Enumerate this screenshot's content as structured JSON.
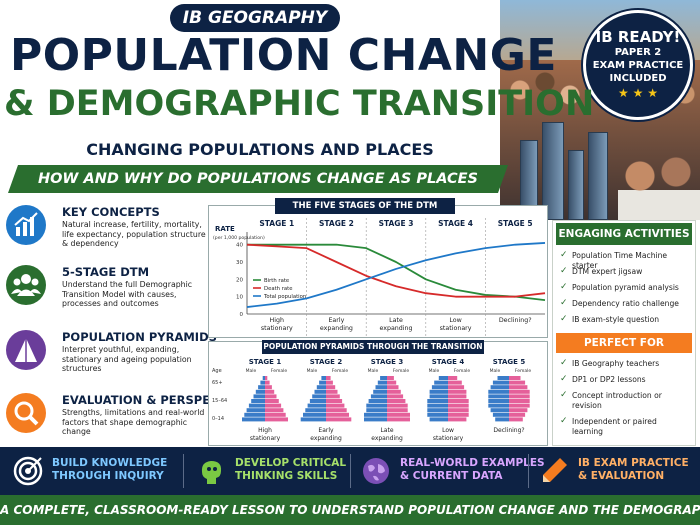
{
  "header": {
    "badge": "IB GEOGRAPHY",
    "title_line1": "POPULATION CHANGE",
    "title_line2": "& DEMOGRAPHIC TRANSITION",
    "subtitle": "CHANGING POPULATIONS AND PLACES",
    "question": "HOW AND WHY DO POPULATIONS CHANGE AS PLACES DEVELOP?"
  },
  "ib_ready": {
    "line1": "IB READY!",
    "line2": "PAPER 2",
    "line3": "EXAM PRACTICE",
    "line4": "INCLUDED",
    "stars": "★ ★ ★"
  },
  "concepts": [
    {
      "icon": "bar-chart-icon",
      "color": "#1f78c8",
      "heading": "KEY CONCEPTS",
      "text": "Natural increase, fertility, mortality, life expectancy, population structure & dependency"
    },
    {
      "icon": "people-icon",
      "color": "#2a6e2f",
      "heading": "5-STAGE DTM",
      "text": "Understand the full Demographic Transition Model with causes, processes and outcomes"
    },
    {
      "icon": "pyramid-icon",
      "color": "#6a3d9a",
      "heading": "POPULATION PYRAMIDS",
      "text": "Interpret youthful, expanding, stationary and ageing population structures"
    },
    {
      "icon": "magnifier-icon",
      "color": "#f47c20",
      "heading": "EVALUATION & PERSPECTIVES",
      "text": "Strengths, limitations and real-world factors that shape demographic change"
    }
  ],
  "dtm": {
    "title": "THE FIVE STAGES OF THE DTM",
    "ylabel": "RATE",
    "ylabel_sub": "(per 1,000 population)",
    "yticks": [
      "40",
      "30",
      "20",
      "10",
      "0"
    ],
    "stages": [
      "STAGE 1",
      "STAGE 2",
      "STAGE 3",
      "STAGE 4",
      "STAGE 5"
    ],
    "stage_labels": [
      "High stationary",
      "Early expanding",
      "Late expanding",
      "Low stationary",
      "Declining?"
    ],
    "legend": [
      "Birth rate",
      "Death rate",
      "Total population"
    ],
    "colors": {
      "birth": "#2a8a3a",
      "death": "#d62a2a",
      "total": "#1f78c8"
    }
  },
  "chart_data": {
    "type": "line",
    "title": "THE FIVE STAGES OF THE DTM",
    "ylabel": "RATE (per 1,000 population)",
    "xlabel": "",
    "categories": [
      "STAGE 1",
      "STAGE 2",
      "STAGE 3",
      "STAGE 4",
      "STAGE 5"
    ],
    "ylim": [
      0,
      45
    ],
    "x": [
      0,
      0.5,
      1,
      1.5,
      2,
      2.5,
      3,
      3.5,
      4,
      4.5,
      5
    ],
    "series": [
      {
        "name": "Birth rate",
        "values": [
          40,
          40,
          40,
          40,
          38,
          30,
          20,
          14,
          11,
          10,
          8
        ]
      },
      {
        "name": "Death rate",
        "values": [
          40,
          39,
          38,
          30,
          22,
          16,
          12,
          10,
          10,
          10,
          12
        ]
      },
      {
        "name": "Total population",
        "values": [
          4,
          6,
          9,
          14,
          20,
          26,
          31,
          35,
          38,
          40,
          41
        ]
      }
    ],
    "grid": false,
    "legend": "bottom-left"
  },
  "pyramids": {
    "title": "POPULATION PYRAMIDS THROUGH THE TRANSITION",
    "age_label": "Age",
    "ages": [
      "65+",
      "15–64",
      "0–14"
    ],
    "male": "Male",
    "female": "Female",
    "stages": [
      "STAGE 1",
      "STAGE 2",
      "STAGE 3",
      "STAGE 4",
      "STAGE 5"
    ],
    "labels": [
      "High stationary",
      "Early expanding",
      "Late expanding",
      "Low stationary",
      "Declining?"
    ]
  },
  "activities": {
    "heading": "ENGAGING ACTIVITIES",
    "items": [
      "Population Time Machine starter",
      "DTM expert jigsaw",
      "Population pyramid analysis",
      "Dependency ratio challenge",
      "IB exam-style question"
    ]
  },
  "perfect_for": {
    "heading": "PERFECT FOR",
    "items": [
      "IB Geography teachers",
      "DP1 or DP2 lessons",
      "Concept introduction or revision",
      "Independent or paired learning"
    ]
  },
  "band": [
    {
      "icon": "target-icon",
      "color": "#ffffff",
      "text1": "BUILD KNOWLEDGE",
      "text2": "THROUGH INQUIRY",
      "tc": "#7ec8ff"
    },
    {
      "icon": "brain-icon",
      "color": "#7ac943",
      "text1": "DEVELOP CRITICAL",
      "text2": "THINKING SKILLS",
      "tc": "#a6e06a"
    },
    {
      "icon": "globe-icon",
      "color": "#b57edc",
      "text1": "REAL-WORLD EXAMPLES",
      "text2": "& CURRENT DATA",
      "tc": "#d9a6ff"
    },
    {
      "icon": "pencil-icon",
      "color": "#f47c20",
      "text1": "IB EXAM PRACTICE",
      "text2": "& EVALUATION",
      "tc": "#ffb066"
    }
  ],
  "footer": "A COMPLETE, CLASSROOM-READY LESSON TO UNDERSTAND POPULATION CHANGE AND THE DEMOGRAPHIC TRANSITION MODEL"
}
